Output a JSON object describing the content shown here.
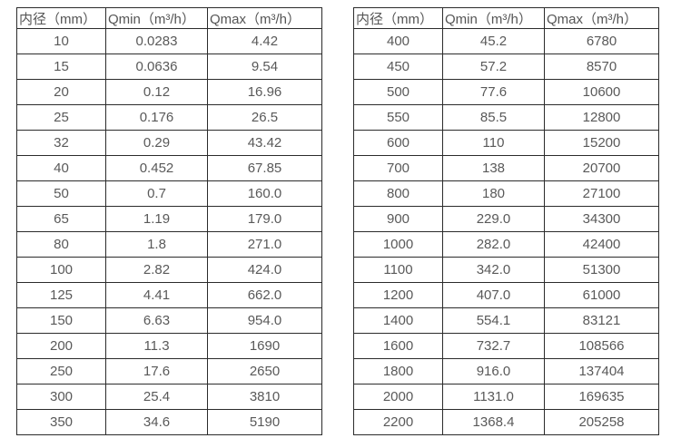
{
  "page": {
    "background": "#ffffff",
    "text_color": "#555555",
    "border_color": "#2b2b2b"
  },
  "tables": [
    {
      "name": "flow-range-table-small-diameters",
      "headers": [
        "内径（mm）",
        "Qmin（m³/h）",
        "Qmax（m³/h）"
      ],
      "rows": [
        [
          "10",
          "0.0283",
          "4.42"
        ],
        [
          "15",
          "0.0636",
          "9.54"
        ],
        [
          "20",
          "0.12",
          "16.96"
        ],
        [
          "25",
          "0.176",
          "26.5"
        ],
        [
          "32",
          "0.29",
          "43.42"
        ],
        [
          "40",
          "0.452",
          "67.85"
        ],
        [
          "50",
          "0.7",
          "160.0"
        ],
        [
          "65",
          "1.19",
          "179.0"
        ],
        [
          "80",
          "1.8",
          "271.0"
        ],
        [
          "100",
          "2.82",
          "424.0"
        ],
        [
          "125",
          "4.41",
          "662.0"
        ],
        [
          "150",
          "6.63",
          "954.0"
        ],
        [
          "200",
          "11.3",
          "1690"
        ],
        [
          "250",
          "17.6",
          "2650"
        ],
        [
          "300",
          "25.4",
          "3810"
        ],
        [
          "350",
          "34.6",
          "5190"
        ]
      ]
    },
    {
      "name": "flow-range-table-large-diameters",
      "headers": [
        "内径（mm）",
        "Qmin（m³/h）",
        "Qmax（m³/h）"
      ],
      "rows": [
        [
          "400",
          "45.2",
          "6780"
        ],
        [
          "450",
          "57.2",
          "8570"
        ],
        [
          "500",
          "77.6",
          "10600"
        ],
        [
          "550",
          "85.5",
          "12800"
        ],
        [
          "600",
          "110",
          "15200"
        ],
        [
          "700",
          "138",
          "20700"
        ],
        [
          "800",
          "180",
          "27100"
        ],
        [
          "900",
          "229.0",
          "34300"
        ],
        [
          "1000",
          "282.0",
          "42400"
        ],
        [
          "1100",
          "342.0",
          "51300"
        ],
        [
          "1200",
          "407.0",
          "61000"
        ],
        [
          "1400",
          "554.1",
          "83121"
        ],
        [
          "1600",
          "732.7",
          "108566"
        ],
        [
          "1800",
          "916.0",
          "137404"
        ],
        [
          "2000",
          "1131.0",
          "169635"
        ],
        [
          "2200",
          "1368.4",
          "205258"
        ]
      ]
    }
  ]
}
